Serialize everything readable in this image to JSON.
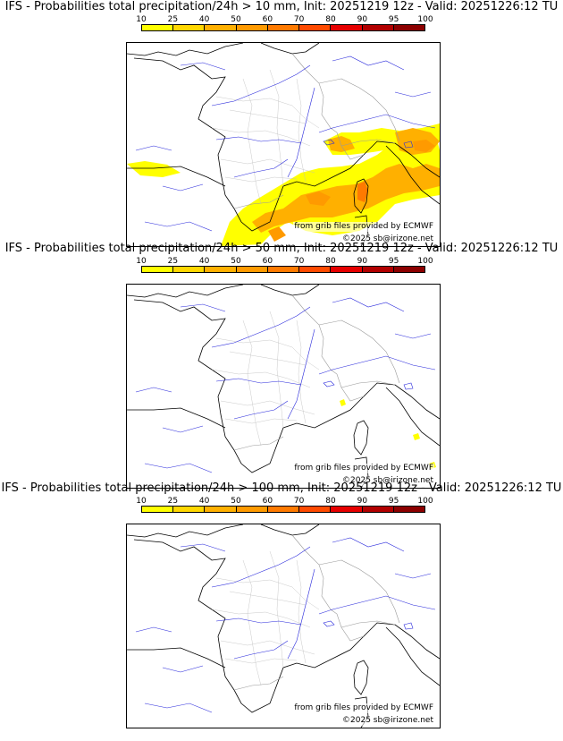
{
  "panels": [
    {
      "title": "IFS - Probabilities total precipitation/24h > 10 mm, Init: 20251219 12z - Valid: 20251226:12 TU",
      "credit_source": "from grib files provided by ECMWF",
      "credit_copyright": "©2025 sb@irizone.net"
    },
    {
      "title": "IFS - Probabilities total precipitation/24h > 50 mm, Init: 20251219 12z - Valid: 20251226:12 TU",
      "credit_source": "from grib files provided by ECMWF",
      "credit_copyright": "©2025 sb@irizone.net"
    },
    {
      "title": "IFS - Probabilities total precipitation/24h > 100 mm, Init: 20251219 12z - Valid: 20251226:12 TU",
      "credit_source": "from grib files provided by ECMWF",
      "credit_copyright": "©2025 sb@irizone.net"
    }
  ],
  "legend": {
    "ticks": [
      "10",
      "25",
      "40",
      "50",
      "60",
      "70",
      "80",
      "90",
      "95",
      "100"
    ],
    "colors": [
      "#ffff00",
      "#ffd700",
      "#ffb000",
      "#ff9a00",
      "#ff7a00",
      "#ff4a00",
      "#e60000",
      "#b20000",
      "#8c0000",
      "#5a0000"
    ]
  },
  "style": {
    "river_color": "#2b2bdc",
    "border_color": "#9a9a9a",
    "coast_color": "#000000"
  }
}
